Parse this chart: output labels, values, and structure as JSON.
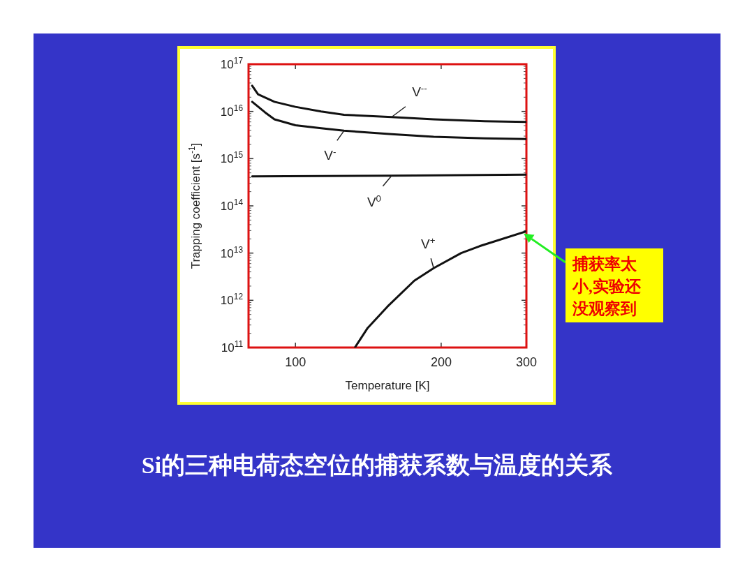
{
  "chart_data": {
    "type": "line",
    "title": "Si的三种电荷态空位的捕获系数与温度的关系",
    "xlabel": "Temperature [K]",
    "ylabel": "Trapping coefficient [s$^{-1}$]",
    "log": "xy",
    "xlim": [
      80,
      300
    ],
    "ylim": [
      100000000000.0,
      1e+17
    ],
    "xticks": [
      100,
      200,
      300
    ],
    "yticks": [
      {
        "value": 100000000000.0,
        "label": "10$^{11}$"
      },
      {
        "value": 1000000000000.0,
        "label": "10$^{12}$"
      },
      {
        "value": 10000000000000.0,
        "label": "10$^{13}$"
      },
      {
        "value": 100000000000000.0,
        "label": "10$^{14}$"
      },
      {
        "value": 1000000000000000.0,
        "label": "10$^{15}$"
      },
      {
        "value": 1e+16,
        "label": "10$^{16}$"
      },
      {
        "value": 1e+17,
        "label": "10$^{17}$"
      }
    ],
    "grid": false,
    "marker": "none",
    "line_style": "solid",
    "series": [
      {
        "name": "V$^{--}$",
        "color": "#111111",
        "x": [
          81.4,
          83.7,
          90.5,
          100,
          113,
          126,
          158,
          193,
          246,
          300
        ],
        "values": [
          3.5e+16,
          2.3e+16,
          1.6e+16,
          1.25e+16,
          1e+16,
          8500000000000000.0,
          7600000000000000.0,
          6800000000000000.0,
          6200000000000000.0,
          6000000000000000.0
        ]
      },
      {
        "name": "V$^{-}$",
        "color": "#111111",
        "x": [
          81.4,
          86.6,
          90.5,
          100,
          113,
          126,
          158,
          193,
          246,
          300
        ],
        "values": [
          1.6e+16,
          9500000000000000.0,
          6800000000000000.0,
          5100000000000000.0,
          4400000000000000.0,
          3900000000000000.0,
          3300000000000000.0,
          2900000000000000.0,
          2700000000000000.0,
          2600000000000000.0
        ]
      },
      {
        "name": "V$^{0}$",
        "color": "#111111",
        "x": [
          81.4,
          158,
          300
        ],
        "values": [
          420000000000000.0,
          435000000000000.0,
          460000000000000.0
        ]
      },
      {
        "name": "V$^{+}$",
        "color": "#111111",
        "x": [
          132.7,
          141,
          155,
          176,
          193,
          220,
          240,
          300
        ],
        "values": [
          100000000000.0,
          260000000000.0,
          740000000000.0,
          2600000000000.0,
          4800000000000.0,
          10000000000000.0,
          14000000000000.0,
          29000000000000.0
        ]
      }
    ],
    "annotations": [
      "捕获率太小,实验还没观察到"
    ]
  }
}
